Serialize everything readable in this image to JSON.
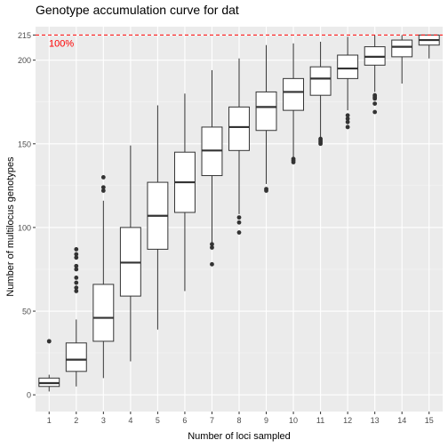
{
  "chart_data": {
    "type": "boxplot",
    "title": "Genotype accumulation curve for dat",
    "xlabel": "Number of loci sampled",
    "ylabel": "Number of multilocus genotypes",
    "ylim": [
      -10,
      220
    ],
    "y_ticks": [
      0,
      50,
      100,
      150,
      200,
      215
    ],
    "grid": true,
    "reference_line": {
      "value": 215,
      "label": "100%",
      "color": "#ff0000",
      "style": "dashed"
    },
    "categories": [
      "1",
      "2",
      "3",
      "4",
      "5",
      "6",
      "7",
      "8",
      "9",
      "10",
      "11",
      "12",
      "13",
      "14",
      "15"
    ],
    "boxes": [
      {
        "x": "1",
        "q1": 5,
        "median": 7,
        "q3": 10,
        "wmin": 2,
        "wmax": 12,
        "outliers": [
          32,
          32
        ]
      },
      {
        "x": "2",
        "q1": 14,
        "median": 21,
        "q3": 31,
        "wmin": 5,
        "wmax": 45,
        "outliers": [
          62,
          64,
          67,
          70,
          75,
          77,
          82,
          84,
          87
        ]
      },
      {
        "x": "3",
        "q1": 32,
        "median": 46,
        "q3": 66,
        "wmin": 10,
        "wmax": 116,
        "outliers": [
          122,
          124,
          130
        ]
      },
      {
        "x": "4",
        "q1": 59,
        "median": 79,
        "q3": 100,
        "wmin": 20,
        "wmax": 149,
        "outliers": []
      },
      {
        "x": "5",
        "q1": 87,
        "median": 107,
        "q3": 127,
        "wmin": 39,
        "wmax": 173,
        "outliers": []
      },
      {
        "x": "6",
        "q1": 109,
        "median": 127,
        "q3": 145,
        "wmin": 62,
        "wmax": 180,
        "outliers": []
      },
      {
        "x": "7",
        "q1": 131,
        "median": 146,
        "q3": 160,
        "wmin": 91,
        "wmax": 194,
        "outliers": [
          78,
          88,
          90
        ]
      },
      {
        "x": "8",
        "q1": 146,
        "median": 160,
        "q3": 172,
        "wmin": 108,
        "wmax": 201,
        "outliers": [
          97,
          103,
          106
        ]
      },
      {
        "x": "9",
        "q1": 158,
        "median": 172,
        "q3": 181,
        "wmin": 126,
        "wmax": 209,
        "outliers": [
          122,
          123
        ]
      },
      {
        "x": "10",
        "q1": 170,
        "median": 181,
        "q3": 189,
        "wmin": 142,
        "wmax": 210,
        "outliers": [
          139,
          140,
          141
        ]
      },
      {
        "x": "11",
        "q1": 179,
        "median": 189,
        "q3": 196,
        "wmin": 154,
        "wmax": 211,
        "outliers": [
          150,
          151,
          152,
          153
        ]
      },
      {
        "x": "12",
        "q1": 189,
        "median": 195,
        "q3": 203,
        "wmin": 170,
        "wmax": 214,
        "outliers": [
          160,
          163,
          165,
          167
        ]
      },
      {
        "x": "13",
        "q1": 197,
        "median": 202,
        "q3": 208,
        "wmin": 181,
        "wmax": 215,
        "outliers": [
          169,
          174,
          177,
          178,
          179
        ]
      },
      {
        "x": "14",
        "q1": 202,
        "median": 208,
        "q3": 212,
        "wmin": 186,
        "wmax": 215,
        "outliers": []
      },
      {
        "x": "15",
        "q1": 209,
        "median": 212,
        "q3": 215,
        "wmin": 201,
        "wmax": 215,
        "outliers": []
      }
    ]
  },
  "colors": {
    "panel_background": "#ebebeb",
    "grid_major": "#ffffff",
    "box_fill": "#ffffff",
    "box_stroke": "#333333",
    "reference_line": "#ff0000",
    "tick_text": "#4d4d4d"
  }
}
